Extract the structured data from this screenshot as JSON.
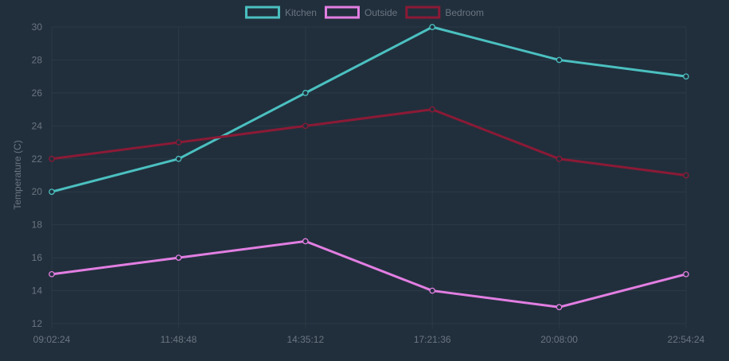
{
  "chart_data": {
    "type": "line",
    "ylabel": "Temperature (C)",
    "ylim": [
      12,
      30
    ],
    "ytick_step": 2,
    "yticks": [
      "12",
      "14",
      "16",
      "18",
      "20",
      "22",
      "24",
      "26",
      "28",
      "30"
    ],
    "categories": [
      "09:02:24",
      "11:48:48",
      "14:35:12",
      "17:21:36",
      "20:08:00",
      "22:54:24"
    ],
    "grid": true,
    "legend_position": "top-center",
    "series": [
      {
        "name": "Kitchen",
        "color": "#4bc0c0",
        "values": [
          20,
          22,
          26,
          30,
          28,
          27
        ]
      },
      {
        "name": "Outside",
        "color": "#e27ee2",
        "values": [
          15,
          16,
          17,
          14,
          13,
          15
        ]
      },
      {
        "name": "Bedroom",
        "color": "#8b1a36",
        "values": [
          22,
          23,
          24,
          25,
          22,
          21
        ]
      }
    ]
  },
  "colors": {
    "background": "#212f3c",
    "grid": "#2c3a46",
    "text": "#6b7580"
  }
}
